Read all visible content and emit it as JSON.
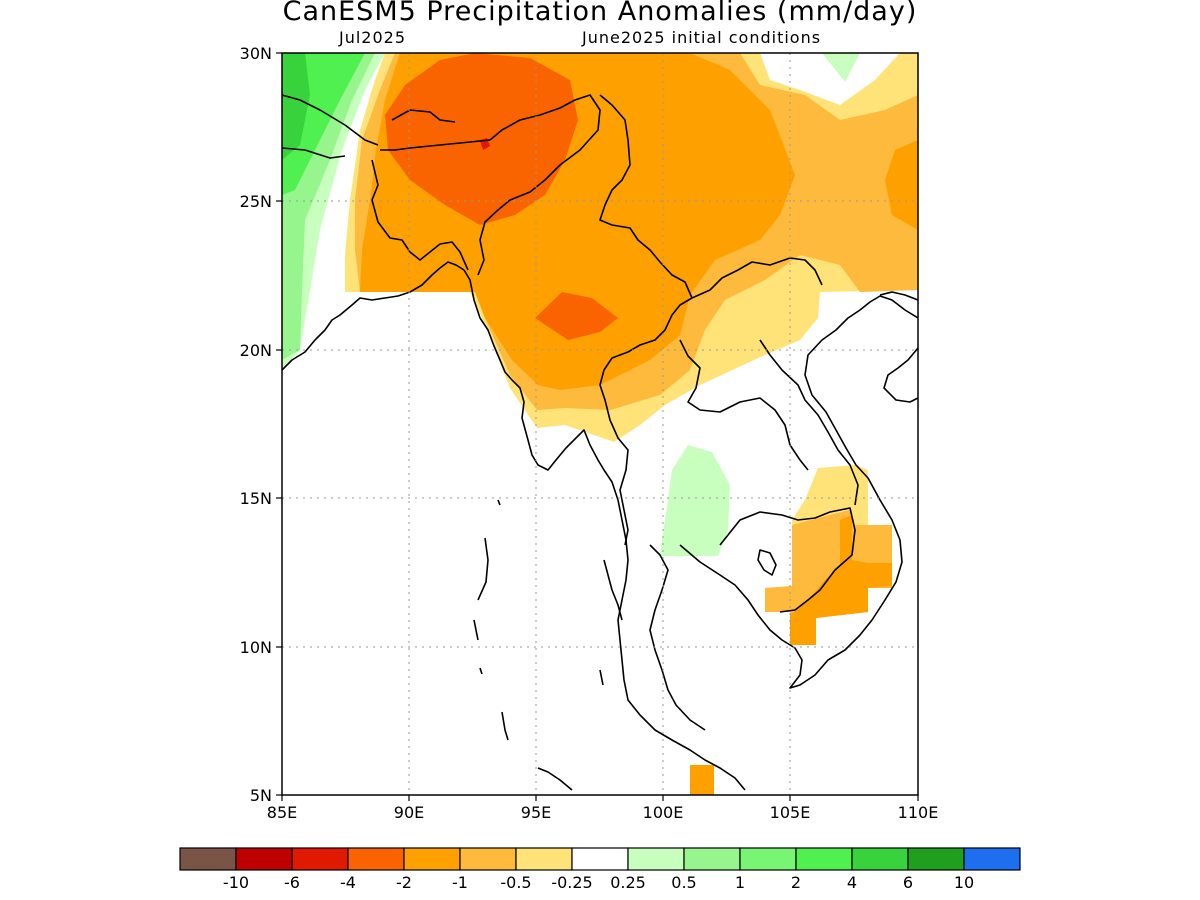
{
  "title": "CanESM5 Precipitation Anomalies (mm/day)",
  "subtitle_left": "Jul2025",
  "subtitle_right": "June2025 initial conditions",
  "map": {
    "lat_range": [
      5,
      30
    ],
    "lon_range": [
      85,
      110
    ],
    "lat_ticks": [
      "5N",
      "10N",
      "15N",
      "20N",
      "25N",
      "30N"
    ],
    "lon_ticks": [
      "85E",
      "90E",
      "95E",
      "100E",
      "105E",
      "110E"
    ],
    "grid": true
  },
  "legend": {
    "colors": [
      "#7b5448",
      "#bf0000",
      "#e01a00",
      "#fa6400",
      "#fda000",
      "#feba3c",
      "#ffe278",
      "#ffffff",
      "#c8ffbe",
      "#96f58c",
      "#78f573",
      "#50f050",
      "#37d23c",
      "#1ea01e",
      "#1e6ef0"
    ],
    "labels": [
      "-10",
      "-6",
      "-4",
      "-2",
      "-1",
      "-0.5",
      "-0.25",
      "0.25",
      "0.5",
      "1",
      "2",
      "4",
      "6",
      "10"
    ]
  }
}
